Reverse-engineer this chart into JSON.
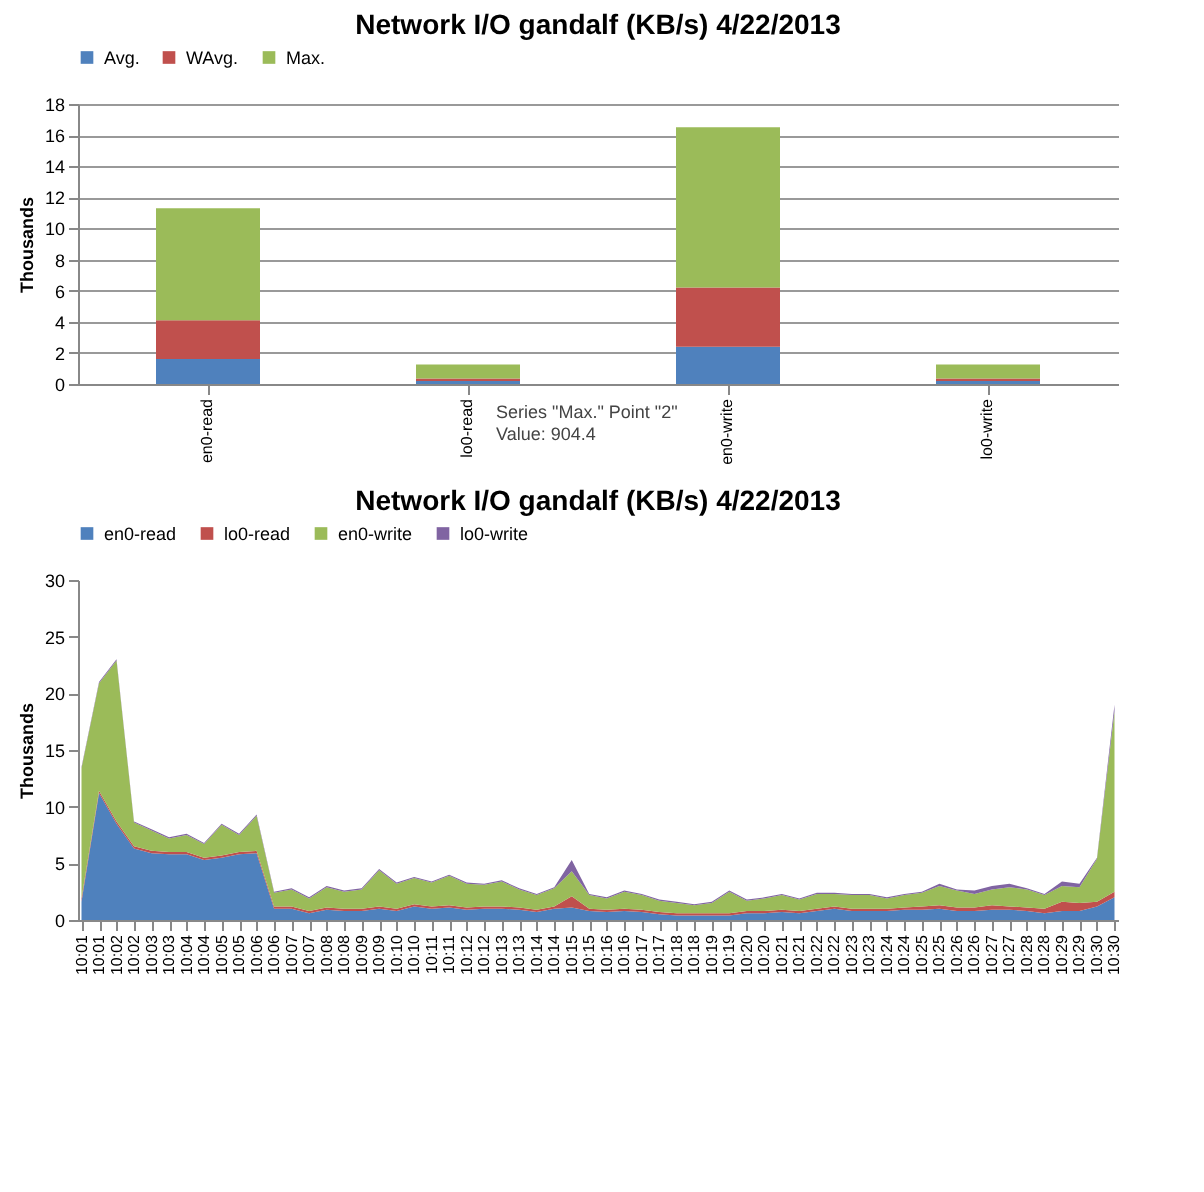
{
  "chart_data": [
    {
      "type": "bar",
      "title": "Network I/O gandalf (KB/s)  4/22/2013",
      "ylabel": "Thousands",
      "stacked": true,
      "grid": "y",
      "legend": "top",
      "categories": [
        "en0-read",
        "lo0-read",
        "en0-write",
        "lo0-write"
      ],
      "series": [
        {
          "name": "Avg.",
          "color": "#4f81bd",
          "values": [
            1.6,
            0.2,
            2.4,
            0.2
          ]
        },
        {
          "name": "WAvg.",
          "color": "#c0504d",
          "values": [
            2.5,
            0.15,
            3.8,
            0.15
          ]
        },
        {
          "name": "Max.",
          "color": "#9bbb59",
          "values": [
            7.2,
            0.9044,
            10.3,
            0.9
          ]
        }
      ],
      "ylim": [
        0,
        18
      ],
      "yticks": [
        0,
        2,
        4,
        6,
        8,
        10,
        12,
        14,
        16,
        18
      ],
      "annotations": [
        "Series \"Max.\" Point \"2\"\nValue: 904.4"
      ]
    },
    {
      "type": "area",
      "title": "Network I/O gandalf (KB/s)  4/22/2013",
      "ylabel": "Thousands",
      "stacked": true,
      "legend": "top",
      "categories": [
        "10:01",
        "10:01",
        "10:02",
        "10:02",
        "10:03",
        "10:03",
        "10:04",
        "10:04",
        "10:05",
        "10:05",
        "10:06",
        "10:06",
        "10:07",
        "10:07",
        "10:08",
        "10:08",
        "10:09",
        "10:09",
        "10:10",
        "10:10",
        "10:11",
        "10:11",
        "10:12",
        "10:12",
        "10:13",
        "10:13",
        "10:14",
        "10:14",
        "10:15",
        "10:15",
        "10:16",
        "10:16",
        "10:17",
        "10:17",
        "10:18",
        "10:18",
        "10:19",
        "10:19",
        "10:20",
        "10:20",
        "10:21",
        "10:21",
        "10:22",
        "10:22",
        "10:23",
        "10:23",
        "10:24",
        "10:24",
        "10:25",
        "10:25",
        "10:26",
        "10:26",
        "10:27",
        "10:27",
        "10:28",
        "10:28",
        "10:29",
        "10:29",
        "10:30",
        "10:30"
      ],
      "series": [
        {
          "name": "en0-read",
          "color": "#4f81bd",
          "values": [
            1.6,
            11.2,
            8.5,
            6.3,
            5.9,
            5.8,
            5.8,
            5.3,
            5.5,
            5.8,
            5.9,
            1.0,
            1.0,
            0.6,
            0.9,
            0.8,
            0.8,
            1.0,
            0.8,
            1.2,
            1.0,
            1.1,
            0.9,
            1.0,
            1.0,
            0.9,
            0.7,
            1.0,
            1.1,
            0.8,
            0.7,
            0.8,
            0.7,
            0.5,
            0.4,
            0.4,
            0.4,
            0.4,
            0.6,
            0.6,
            0.7,
            0.6,
            0.8,
            1.0,
            0.8,
            0.8,
            0.8,
            0.9,
            0.9,
            1.0,
            0.8,
            0.8,
            0.9,
            0.9,
            0.8,
            0.6,
            0.8,
            0.8,
            1.2,
            2.0
          ]
        },
        {
          "name": "lo0-read",
          "color": "#c0504d",
          "values": [
            0.3,
            0.2,
            0.2,
            0.2,
            0.2,
            0.2,
            0.2,
            0.2,
            0.2,
            0.2,
            0.2,
            0.2,
            0.2,
            0.2,
            0.2,
            0.2,
            0.2,
            0.2,
            0.2,
            0.2,
            0.2,
            0.2,
            0.2,
            0.2,
            0.2,
            0.2,
            0.2,
            0.2,
            1.0,
            0.2,
            0.2,
            0.2,
            0.2,
            0.2,
            0.2,
            0.2,
            0.2,
            0.2,
            0.2,
            0.2,
            0.2,
            0.2,
            0.2,
            0.2,
            0.2,
            0.2,
            0.2,
            0.2,
            0.3,
            0.3,
            0.3,
            0.3,
            0.4,
            0.3,
            0.3,
            0.4,
            0.8,
            0.7,
            0.4,
            0.5
          ]
        },
        {
          "name": "en0-write",
          "color": "#9bbb59",
          "values": [
            11.5,
            9.5,
            14.2,
            2.1,
            1.8,
            1.2,
            1.5,
            1.2,
            2.7,
            1.5,
            3.1,
            1.2,
            1.5,
            1.1,
            1.8,
            1.5,
            1.7,
            3.2,
            2.2,
            2.3,
            2.1,
            2.6,
            2.1,
            1.9,
            2.2,
            1.6,
            1.3,
            1.6,
            2.2,
            1.2,
            1.0,
            1.5,
            1.3,
            1.0,
            0.9,
            0.7,
            0.9,
            1.9,
            0.9,
            1.1,
            1.3,
            1.0,
            1.3,
            1.1,
            1.2,
            1.2,
            0.9,
            1.1,
            1.2,
            1.7,
            1.5,
            1.2,
            1.4,
            1.7,
            1.6,
            1.2,
            1.4,
            1.4,
            3.8,
            15.9
          ]
        },
        {
          "name": "lo0-write",
          "color": "#8064a2",
          "values": [
            0.1,
            0.1,
            0.1,
            0.1,
            0.1,
            0.1,
            0.1,
            0.1,
            0.1,
            0.1,
            0.1,
            0.1,
            0.1,
            0.1,
            0.1,
            0.1,
            0.1,
            0.1,
            0.1,
            0.1,
            0.1,
            0.1,
            0.1,
            0.1,
            0.1,
            0.1,
            0.1,
            0.1,
            1.0,
            0.1,
            0.1,
            0.1,
            0.1,
            0.1,
            0.1,
            0.1,
            0.1,
            0.1,
            0.1,
            0.1,
            0.1,
            0.1,
            0.1,
            0.1,
            0.1,
            0.1,
            0.1,
            0.1,
            0.1,
            0.2,
            0.1,
            0.3,
            0.3,
            0.3,
            0.1,
            0.1,
            0.4,
            0.3,
            0.1,
            0.6
          ]
        }
      ],
      "ylim": [
        0,
        30
      ],
      "yticks": [
        0,
        5,
        10,
        15,
        20,
        25,
        30
      ]
    }
  ]
}
